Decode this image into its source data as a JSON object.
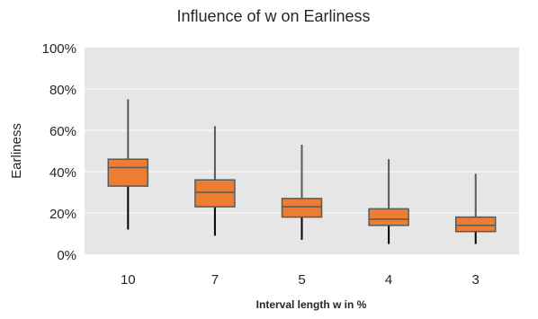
{
  "chart_data": {
    "type": "boxplot",
    "title": "Influence of w on Earliness",
    "xlabel": "Interval length  w in %",
    "ylabel": "Earliness",
    "categories": [
      "10",
      "7",
      "5",
      "4",
      "3"
    ],
    "y_ticks": [
      {
        "value": 0,
        "label": "0%"
      },
      {
        "value": 20,
        "label": "20%"
      },
      {
        "value": 40,
        "label": "40%"
      },
      {
        "value": 60,
        "label": "60%"
      },
      {
        "value": 80,
        "label": "80%"
      },
      {
        "value": 100,
        "label": "100%"
      }
    ],
    "ylim": [
      0,
      100
    ],
    "grid": true,
    "legend": "none",
    "colors": {
      "box_fill": "#ED7D31",
      "box_stroke": "#595959",
      "whisker": "#000000",
      "plot_bg": "#E7E6E6",
      "gridline": "#FFFFFF"
    },
    "boxes": [
      {
        "category": "10",
        "min": 12,
        "q1": 33,
        "median": 42,
        "q3": 46,
        "max": 75
      },
      {
        "category": "7",
        "min": 9,
        "q1": 23,
        "median": 30,
        "q3": 36,
        "max": 62
      },
      {
        "category": "5",
        "min": 7,
        "q1": 18,
        "median": 23,
        "q3": 27,
        "max": 53
      },
      {
        "category": "4",
        "min": 5,
        "q1": 14,
        "median": 17,
        "q3": 22,
        "max": 46
      },
      {
        "category": "3",
        "min": 5,
        "q1": 11,
        "median": 14,
        "q3": 18,
        "max": 39
      }
    ]
  }
}
